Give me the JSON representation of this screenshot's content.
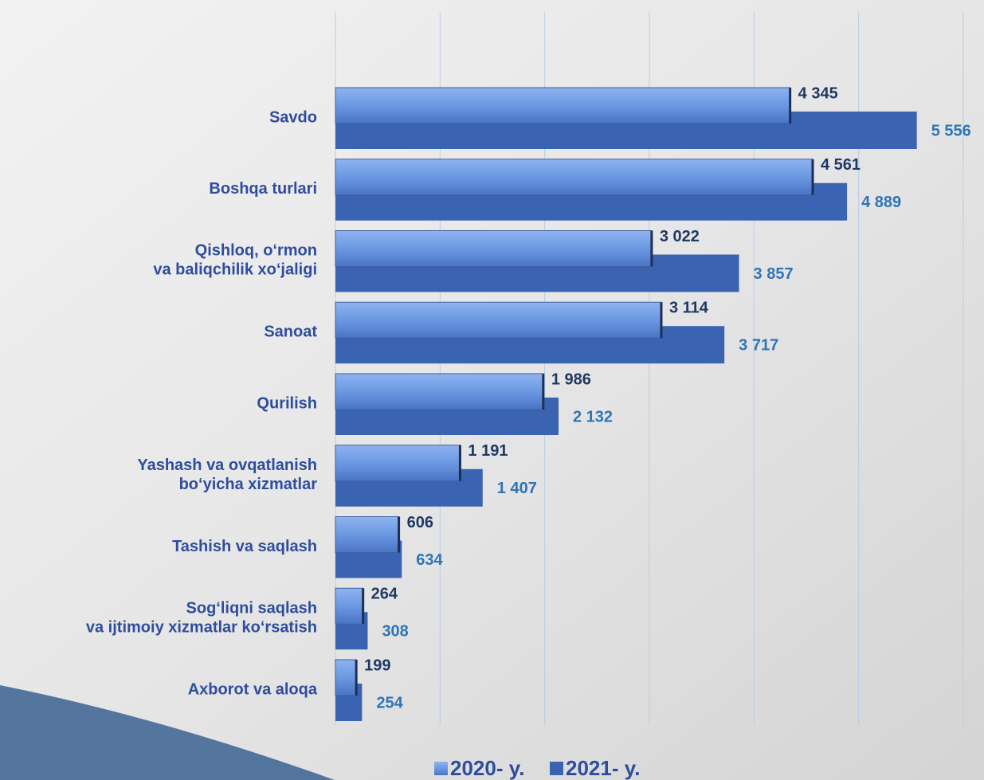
{
  "chart_data": {
    "type": "bar",
    "orientation": "horizontal",
    "categories": [
      "Savdo",
      "Boshqa turlari",
      "Qishloq, o‘rmon\nva baliqchilik xo‘jaligi",
      "Sanoat",
      "Qurilish",
      "Yashash va ovqatlanish\nbo‘yicha xizmatlar",
      "Tashish va saqlash",
      "Sog‘liqni saqlash\nva ijtimoiy xizmatlar ko‘rsatish",
      "Axborot va aloqa"
    ],
    "series": [
      {
        "name": "2020- y.",
        "color": "#5f8fdc",
        "label_color": "#1f3864",
        "values": [
          4345,
          4561,
          3022,
          3114,
          1986,
          1191,
          606,
          264,
          199
        ],
        "value_labels": [
          "4 345",
          "4 561",
          "3 022",
          "3 114",
          "1 986",
          "1 191",
          "606",
          "264",
          "199"
        ]
      },
      {
        "name": "2021- y.",
        "color": "#3a63b2",
        "label_color": "#2e75b6",
        "values": [
          5556,
          4889,
          3857,
          3717,
          2132,
          1407,
          634,
          308,
          254
        ],
        "value_labels": [
          "5 556",
          "4 889",
          "3 857",
          "3 717",
          "2 132",
          "1 407",
          "634",
          "308",
          "254"
        ]
      }
    ],
    "xlim": [
      0,
      6000
    ],
    "xticks": [
      0,
      1000,
      2000,
      3000,
      4000,
      5000,
      6000
    ],
    "grid": true
  }
}
